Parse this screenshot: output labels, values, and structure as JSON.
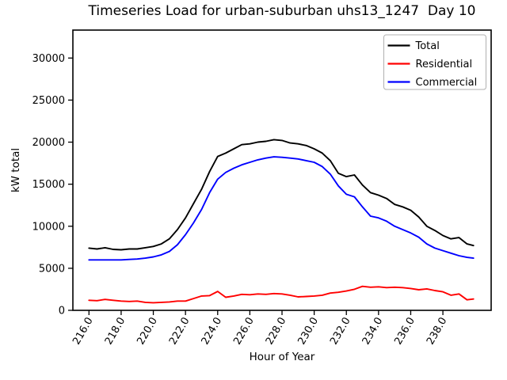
{
  "title": "Timeseries Load for urban-suburban uhs13_1247  Day 10",
  "chart_data": {
    "type": "line",
    "title": "Timeseries Load for urban-suburban uhs13_1247  Day 10",
    "xlabel": "Hour of Year",
    "ylabel": "kW total",
    "xlim": [
      215.0,
      241.0
    ],
    "ylim": [
      0,
      33325
    ],
    "grid": false,
    "x_ticks": [
      216,
      218,
      220,
      222,
      224,
      226,
      228,
      230,
      232,
      234,
      236,
      238
    ],
    "x_tick_labels": [
      "216.0",
      "218.0",
      "220.0",
      "222.0",
      "224.0",
      "226.0",
      "228.0",
      "230.0",
      "232.0",
      "234.0",
      "236.0",
      "238.0"
    ],
    "x_tick_rotation_deg": 60,
    "y_ticks": [
      0,
      5000,
      10000,
      15000,
      20000,
      25000,
      30000
    ],
    "y_tick_labels": [
      "0",
      "5000",
      "10000",
      "15000",
      "20000",
      "25000",
      "30000"
    ],
    "legend": {
      "position": "upper right",
      "entries": [
        {
          "label": "Total",
          "color": "#000000"
        },
        {
          "label": "Residential",
          "color": "#ff0000"
        },
        {
          "label": "Commercial",
          "color": "#0000ff"
        }
      ]
    },
    "x": [
      216.0,
      216.5,
      217.0,
      217.5,
      218.0,
      218.5,
      219.0,
      219.5,
      220.0,
      220.5,
      221.0,
      221.5,
      222.0,
      222.5,
      223.0,
      223.5,
      224.0,
      224.5,
      225.0,
      225.5,
      226.0,
      226.5,
      227.0,
      227.5,
      228.0,
      228.5,
      229.0,
      229.5,
      230.0,
      230.5,
      231.0,
      231.5,
      232.0,
      232.5,
      233.0,
      233.5,
      234.0,
      234.5,
      235.0,
      235.5,
      236.0,
      236.5,
      237.0,
      237.5,
      238.0,
      238.5,
      239.0,
      239.5,
      239.9
    ],
    "series": [
      {
        "name": "Total",
        "color": "#000000",
        "values": [
          7400,
          7300,
          7450,
          7250,
          7200,
          7300,
          7300,
          7450,
          7600,
          7900,
          8500,
          9600,
          11000,
          12700,
          14400,
          16500,
          18300,
          18700,
          19200,
          19700,
          19800,
          20000,
          20100,
          20300,
          20200,
          19900,
          19800,
          19600,
          19200,
          18700,
          17800,
          16300,
          15900,
          16100,
          14900,
          14000,
          13700,
          13300,
          12600,
          12300,
          11900,
          11100,
          10000,
          9500,
          8900,
          8500,
          8650,
          7900,
          7700
        ]
      },
      {
        "name": "Residential",
        "color": "#ff0000",
        "values": [
          1200,
          1150,
          1300,
          1200,
          1100,
          1050,
          1100,
          950,
          900,
          950,
          1000,
          1100,
          1100,
          1400,
          1700,
          1750,
          2250,
          1550,
          1700,
          1900,
          1850,
          1950,
          1900,
          2000,
          1950,
          1800,
          1600,
          1650,
          1700,
          1800,
          2050,
          2150,
          2300,
          2500,
          2850,
          2750,
          2800,
          2700,
          2750,
          2700,
          2600,
          2450,
          2550,
          2350,
          2200,
          1800,
          1950,
          1250,
          1350
        ]
      },
      {
        "name": "Commercial",
        "color": "#0000ff",
        "values": [
          6000,
          6000,
          6000,
          6000,
          6000,
          6050,
          6100,
          6200,
          6350,
          6600,
          7000,
          7800,
          9000,
          10400,
          12000,
          14000,
          15600,
          16400,
          16900,
          17300,
          17600,
          17900,
          18100,
          18250,
          18200,
          18100,
          18000,
          17800,
          17600,
          17100,
          16200,
          14800,
          13800,
          13500,
          12300,
          11200,
          11000,
          10600,
          10000,
          9600,
          9200,
          8700,
          7900,
          7400,
          7100,
          6800,
          6500,
          6300,
          6200
        ]
      }
    ]
  }
}
